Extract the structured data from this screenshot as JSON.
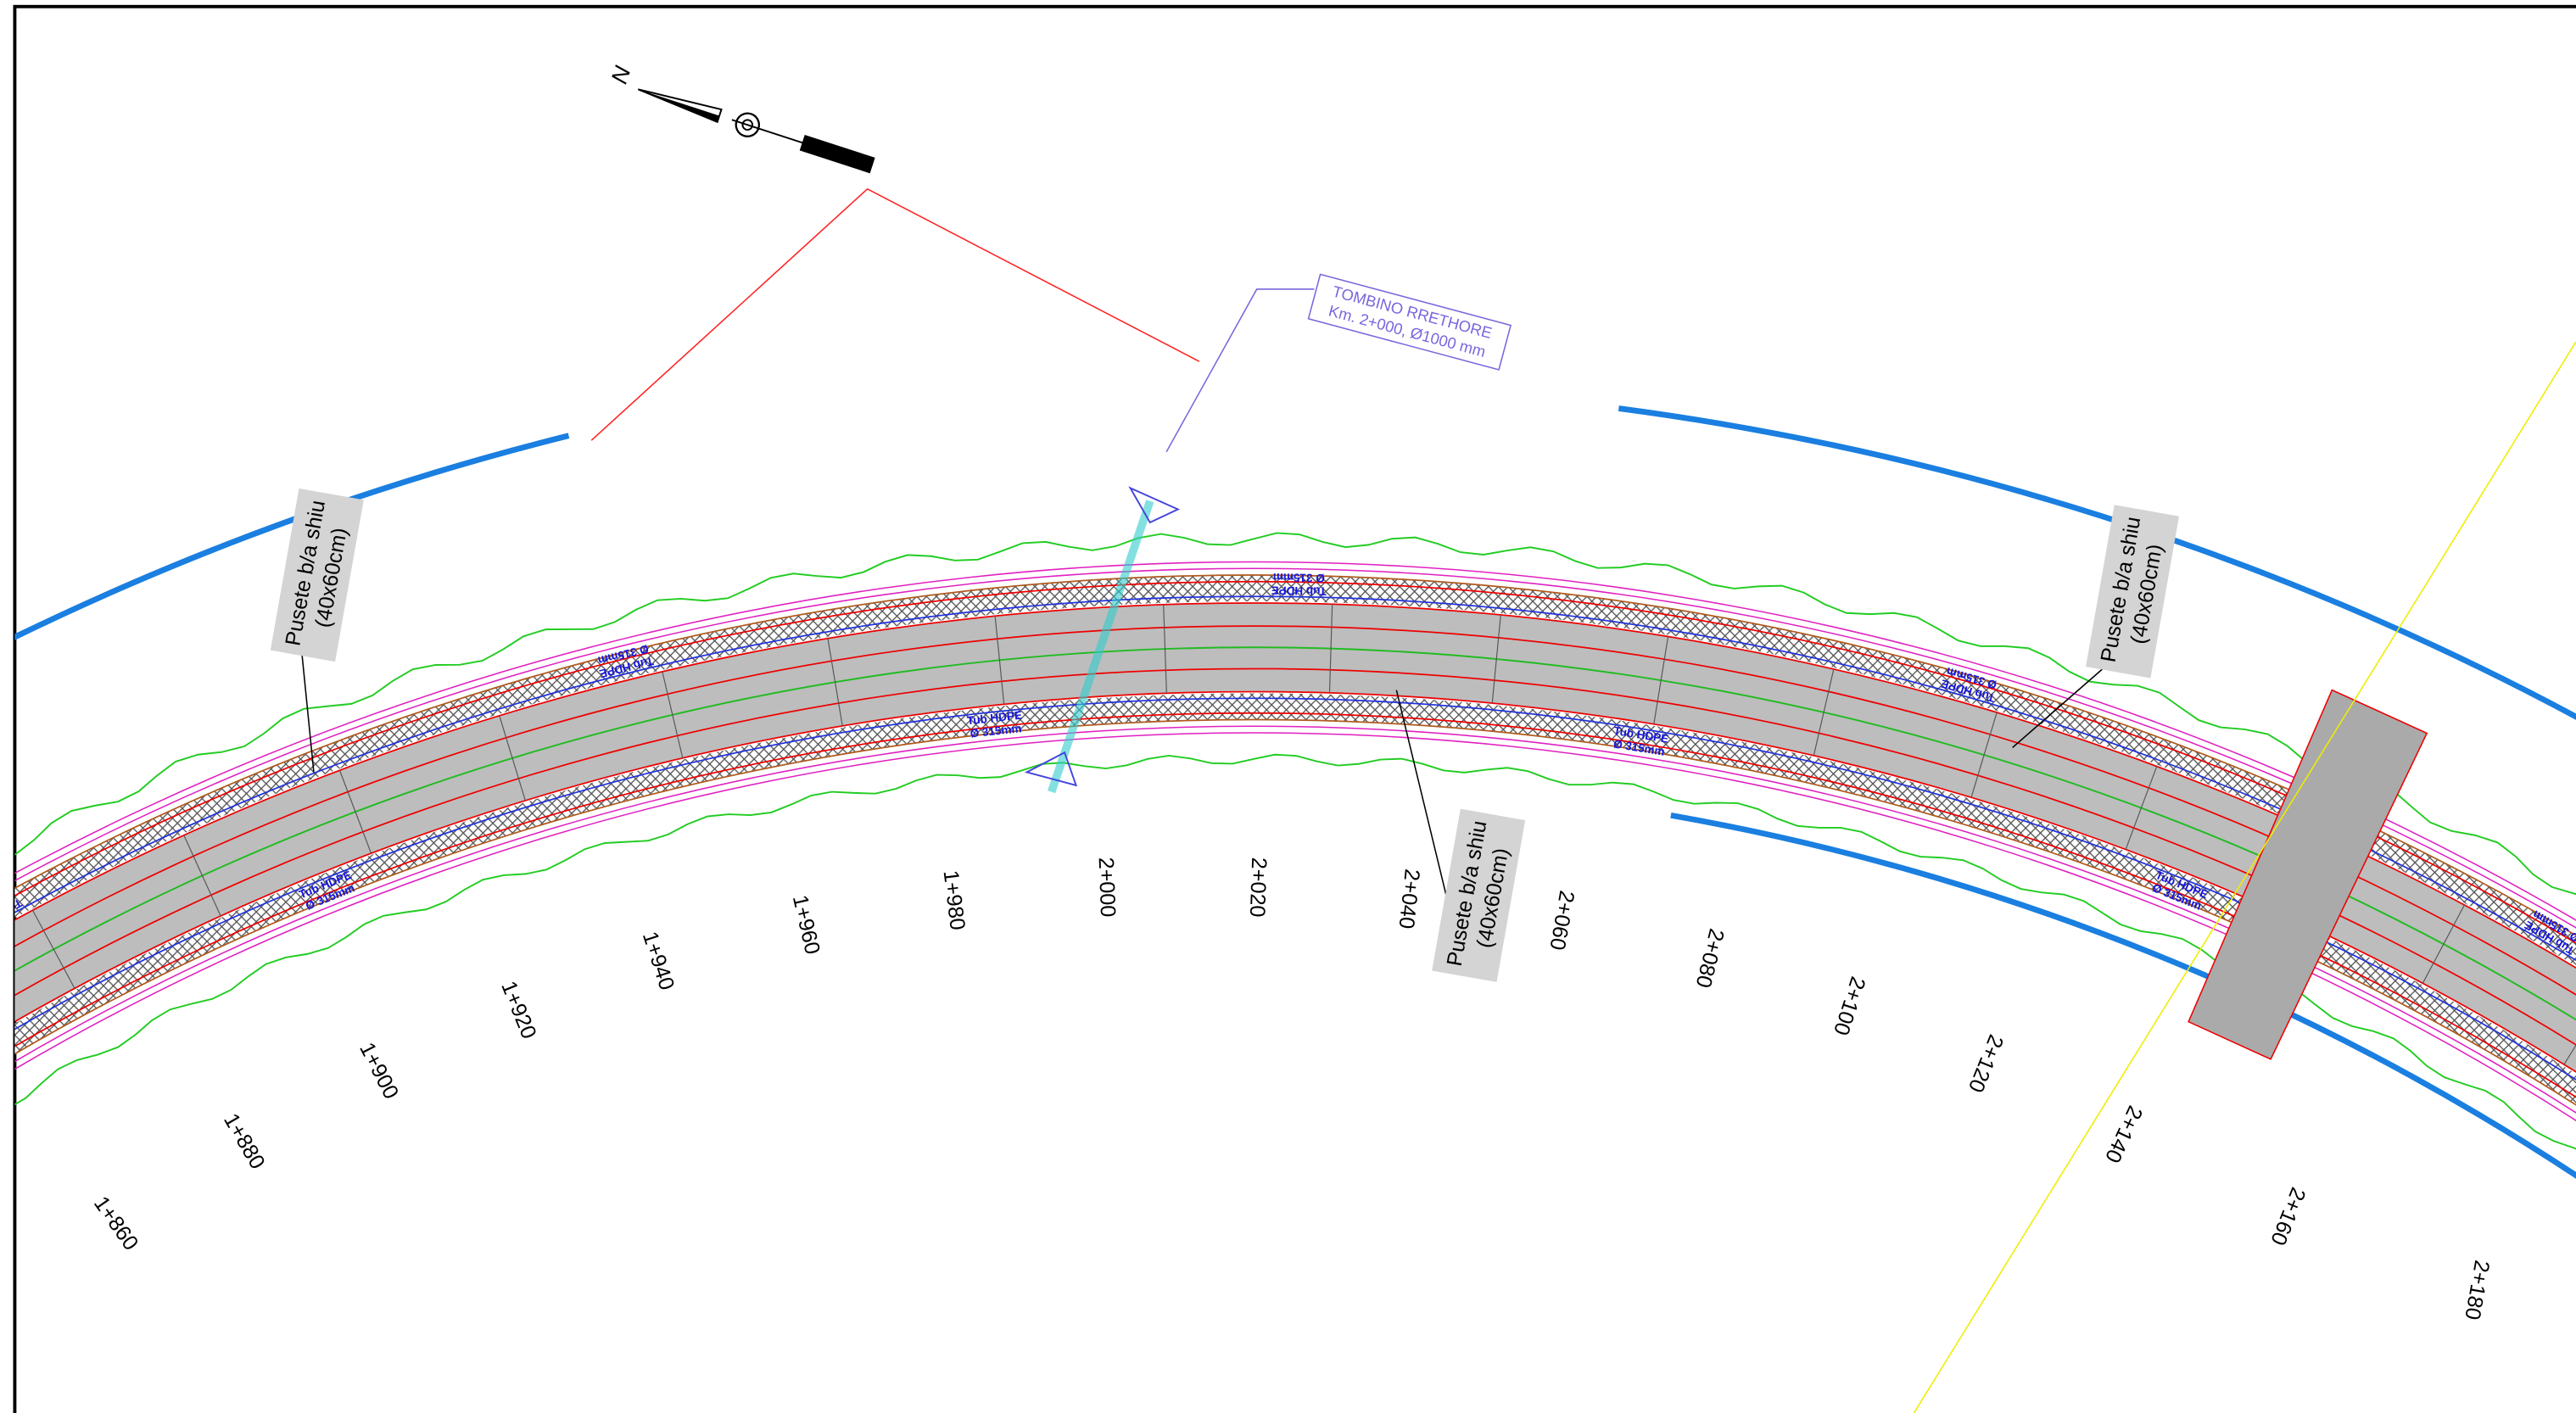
{
  "north_arrow": {
    "label": "N"
  },
  "culvert": {
    "title": "TOMBINO RRETHORE",
    "detail": "Km. 2+000, Ø1000 mm"
  },
  "manholes": [
    {
      "name": "Pusete b/a shiu",
      "size": "(40x60cm)"
    },
    {
      "name": "Pusete b/a shiu",
      "size": "(40x60cm)"
    },
    {
      "name": "Pusete b/a shiu",
      "size": "(40x60cm)"
    }
  ],
  "pipe_label": {
    "name": "Tub HDPE",
    "size": "Ø 315mm"
  },
  "stations": [
    "1+860",
    "1+880",
    "1+900",
    "1+920",
    "1+940",
    "1+960",
    "1+980",
    "2+000",
    "2+020",
    "2+040",
    "2+060",
    "2+080",
    "2+100",
    "2+120",
    "2+140",
    "2+160",
    "2+180"
  ]
}
